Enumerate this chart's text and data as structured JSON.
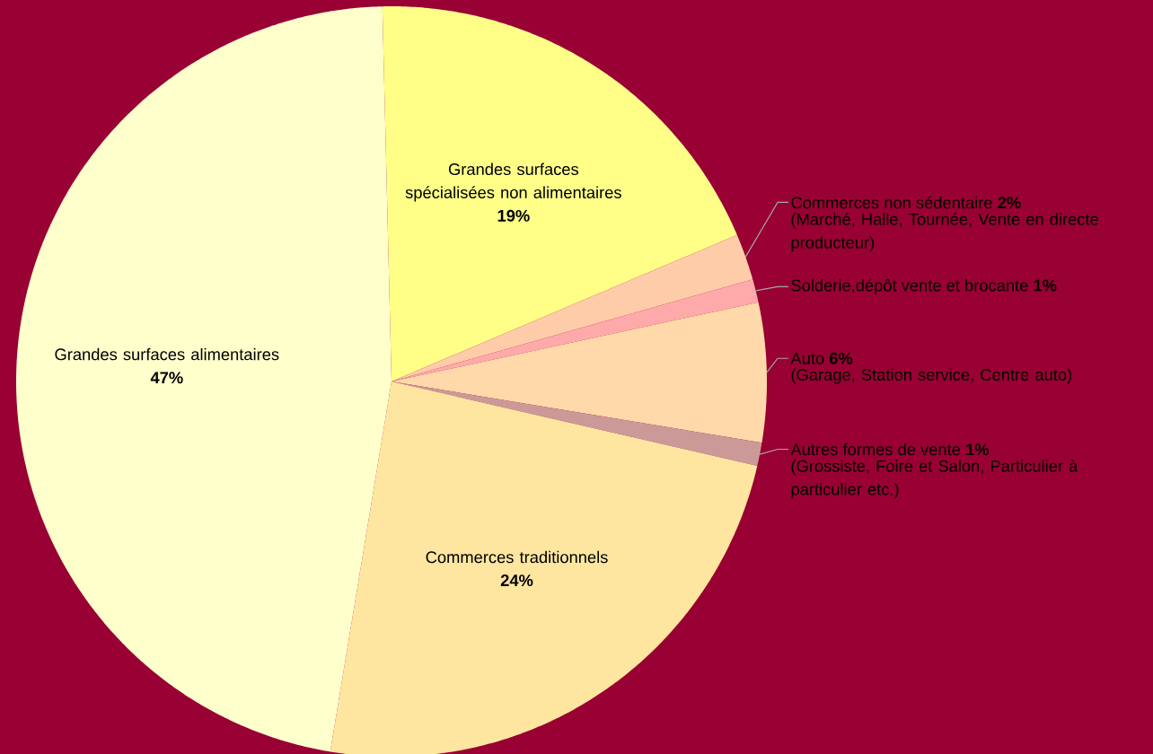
{
  "chart_data": {
    "type": "pie",
    "categories": [
      "Grandes surfaces spécialisées non alimentaires",
      "Commerces non sédentaire",
      "Solderie,dépôt vente et brocante",
      "Auto",
      "Autres formes de vente",
      "Commerces traditionnels",
      "Grandes surfaces alimentaires"
    ],
    "values": [
      19,
      2,
      1,
      6,
      1,
      24,
      47
    ],
    "value_labels": [
      "19%",
      "2%",
      "1%",
      "6%",
      "1%",
      "24%",
      "47%"
    ],
    "colors": [
      "#ffff88",
      "#ffccaa",
      "#ffaaaa",
      "#ffd9aa",
      "#cc9999",
      "#ffe6a0",
      "#ffffcc"
    ],
    "annotations": [
      {
        "text": "(Marché, Halle, Tournée, Vente en directe producteur)",
        "x": "Commerces non sédentaire"
      },
      {
        "text": "(Garage, Station service, Centre auto)",
        "x": "Auto"
      },
      {
        "text": "(Grossiste, Foire et Salon, Particulier à particulier etc.)",
        "x": "Autres formes de vente"
      }
    ]
  }
}
